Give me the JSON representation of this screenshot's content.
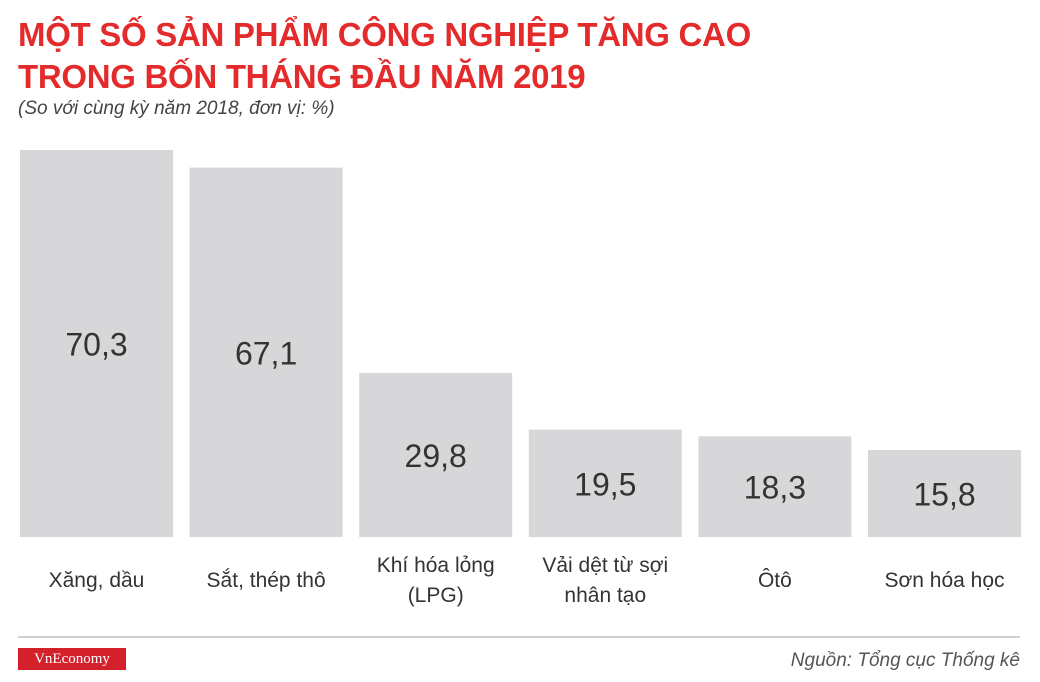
{
  "header": {
    "title_line1": "MỘT SỐ SẢN PHẨM CÔNG NGHIỆP TĂNG CAO",
    "title_line2": "TRONG BỐN THÁNG ĐẦU NĂM 2019",
    "subtitle": "(So với cùng kỳ năm 2018, đơn vị: %)"
  },
  "chart_data": {
    "type": "bar",
    "title": "MỘT SỐ SẢN PHẨM CÔNG NGHIỆP TĂNG CAO TRONG BỐN THÁNG ĐẦU NĂM 2019",
    "subtitle": "(So với cùng kỳ năm 2018, đơn vị: %)",
    "categories": [
      [
        "Xăng, dầu"
      ],
      [
        "Sắt, thép thô"
      ],
      [
        "Khí hóa lỏng",
        "(LPG)"
      ],
      [
        "Vải dệt từ sợi",
        "nhân tạo"
      ],
      [
        "Ôtô"
      ],
      [
        "Sơn hóa học"
      ]
    ],
    "values": [
      70.3,
      67.1,
      29.8,
      19.5,
      18.3,
      15.8
    ],
    "value_labels": [
      "70,3",
      "67,1",
      "29,8",
      "19,5",
      "18,3",
      "15,8"
    ],
    "xlabel": "",
    "ylabel": "",
    "ylim": [
      0,
      70.3
    ],
    "grid": false,
    "legend": "none",
    "bar_color": "#d7d7d9",
    "label_color": "#333333"
  },
  "footer": {
    "brand": "VnEconomy",
    "brand_color": "#d3202a",
    "source": "Nguồn: Tổng cục Thống kê"
  }
}
